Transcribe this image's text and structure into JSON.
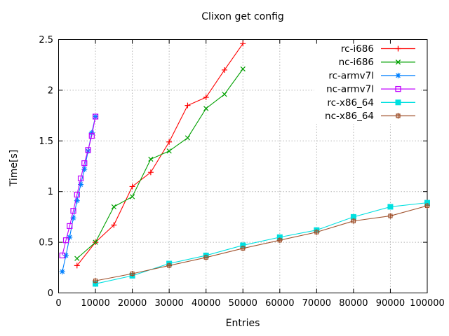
{
  "title": "Clixon get config",
  "chart_data": {
    "type": "line",
    "title": "Clixon get config",
    "xlabel": "Entries",
    "ylabel": "Time[s]",
    "xlim": [
      0,
      100000
    ],
    "ylim": [
      0,
      2.5
    ],
    "grid": true,
    "legend_position": "top-right-inside",
    "x_ticks": [
      0,
      10000,
      20000,
      30000,
      40000,
      50000,
      60000,
      70000,
      80000,
      90000,
      100000
    ],
    "x_tick_labels": [
      "0",
      "10000",
      "20000",
      "30000",
      "40000",
      "50000",
      "60000",
      "70000",
      "80000",
      "90000",
      "100000"
    ],
    "y_ticks": [
      0,
      0.5,
      1,
      1.5,
      2,
      2.5
    ],
    "y_tick_labels": [
      "0",
      "0.5",
      "1",
      "1.5",
      "2",
      "2.5"
    ],
    "series": [
      {
        "name": "rc-i686",
        "color": "#ff0000",
        "marker": "plus",
        "x": [
          5000,
          10000,
          15000,
          20000,
          25000,
          30000,
          35000,
          40000,
          45000,
          50000
        ],
        "y": [
          0.27,
          0.5,
          0.67,
          1.05,
          1.19,
          1.49,
          1.85,
          1.93,
          2.2,
          2.46
        ]
      },
      {
        "name": "nc-i686",
        "color": "#00a000",
        "marker": "cross",
        "x": [
          5000,
          10000,
          15000,
          20000,
          25000,
          30000,
          35000,
          40000,
          45000,
          50000
        ],
        "y": [
          0.34,
          0.5,
          0.85,
          0.95,
          1.32,
          1.4,
          1.53,
          1.82,
          1.96,
          2.21
        ]
      },
      {
        "name": "rc-armv7l",
        "color": "#0080ff",
        "marker": "asterisk",
        "x": [
          1000,
          2000,
          3000,
          4000,
          5000,
          6000,
          7000,
          8000,
          9000,
          10000
        ],
        "y": [
          0.21,
          0.37,
          0.55,
          0.74,
          0.91,
          1.07,
          1.22,
          1.4,
          1.58,
          1.74
        ]
      },
      {
        "name": "nc-armv7l",
        "color": "#c000ff",
        "marker": "square-open",
        "x": [
          1000,
          2000,
          3000,
          4000,
          5000,
          6000,
          7000,
          8000,
          9000,
          10000
        ],
        "y": [
          0.37,
          0.52,
          0.66,
          0.81,
          0.97,
          1.13,
          1.28,
          1.41,
          1.55,
          1.74
        ]
      },
      {
        "name": "rc-x86_64",
        "color": "#00e0e0",
        "marker": "square-filled",
        "x": [
          10000,
          20000,
          30000,
          40000,
          50000,
          60000,
          70000,
          80000,
          90000,
          100000
        ],
        "y": [
          0.09,
          0.17,
          0.29,
          0.37,
          0.47,
          0.55,
          0.62,
          0.75,
          0.85,
          0.89
        ]
      },
      {
        "name": "nc-x86_64",
        "color": "#a0522d",
        "marker": "square-plus",
        "x": [
          10000,
          20000,
          30000,
          40000,
          50000,
          60000,
          70000,
          80000,
          90000,
          100000
        ],
        "y": [
          0.12,
          0.19,
          0.27,
          0.35,
          0.44,
          0.52,
          0.6,
          0.71,
          0.76,
          0.86
        ]
      }
    ],
    "style": {
      "grid_color": "#b5b5b5",
      "border_color": "#000000",
      "text_color": "#000000",
      "background": "#ffffff"
    }
  }
}
